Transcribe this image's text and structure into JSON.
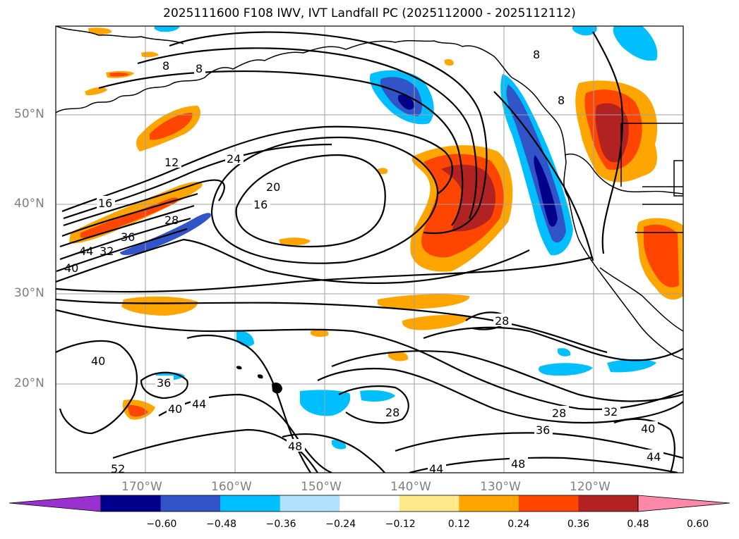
{
  "title": "2025111600 F108 IWV, IVT Landfall PC (2025112000 - 2025112112)",
  "lat_labels": [
    "50°N",
    "40°N",
    "30°N",
    "20°N"
  ],
  "lon_labels": [
    "170°W",
    "160°W",
    "150°W",
    "140°W",
    "130°W",
    "120°W"
  ],
  "contour_labels": [
    "8",
    "8",
    "8",
    "8",
    "12",
    "16",
    "24",
    "20",
    "16",
    "28",
    "36",
    "40",
    "44",
    "32",
    "28",
    "28",
    "40",
    "36",
    "40",
    "44",
    "48",
    "52",
    "44",
    "48",
    "36",
    "28",
    "32",
    "40",
    "44"
  ],
  "colorbar": {
    "ticks": [
      "−0.60",
      "−0.48",
      "−0.36",
      "−0.24",
      "−0.12",
      "0.12",
      "0.24",
      "0.36",
      "0.48",
      "0.60"
    ],
    "colors": [
      "#9b30d0",
      "#00008b",
      "#3154c8",
      "#00bfff",
      "#b0e2ff",
      "#ffffff",
      "#ffe98a",
      "#ffa500",
      "#ff4500",
      "#b22222",
      "#ff88a8"
    ]
  }
}
